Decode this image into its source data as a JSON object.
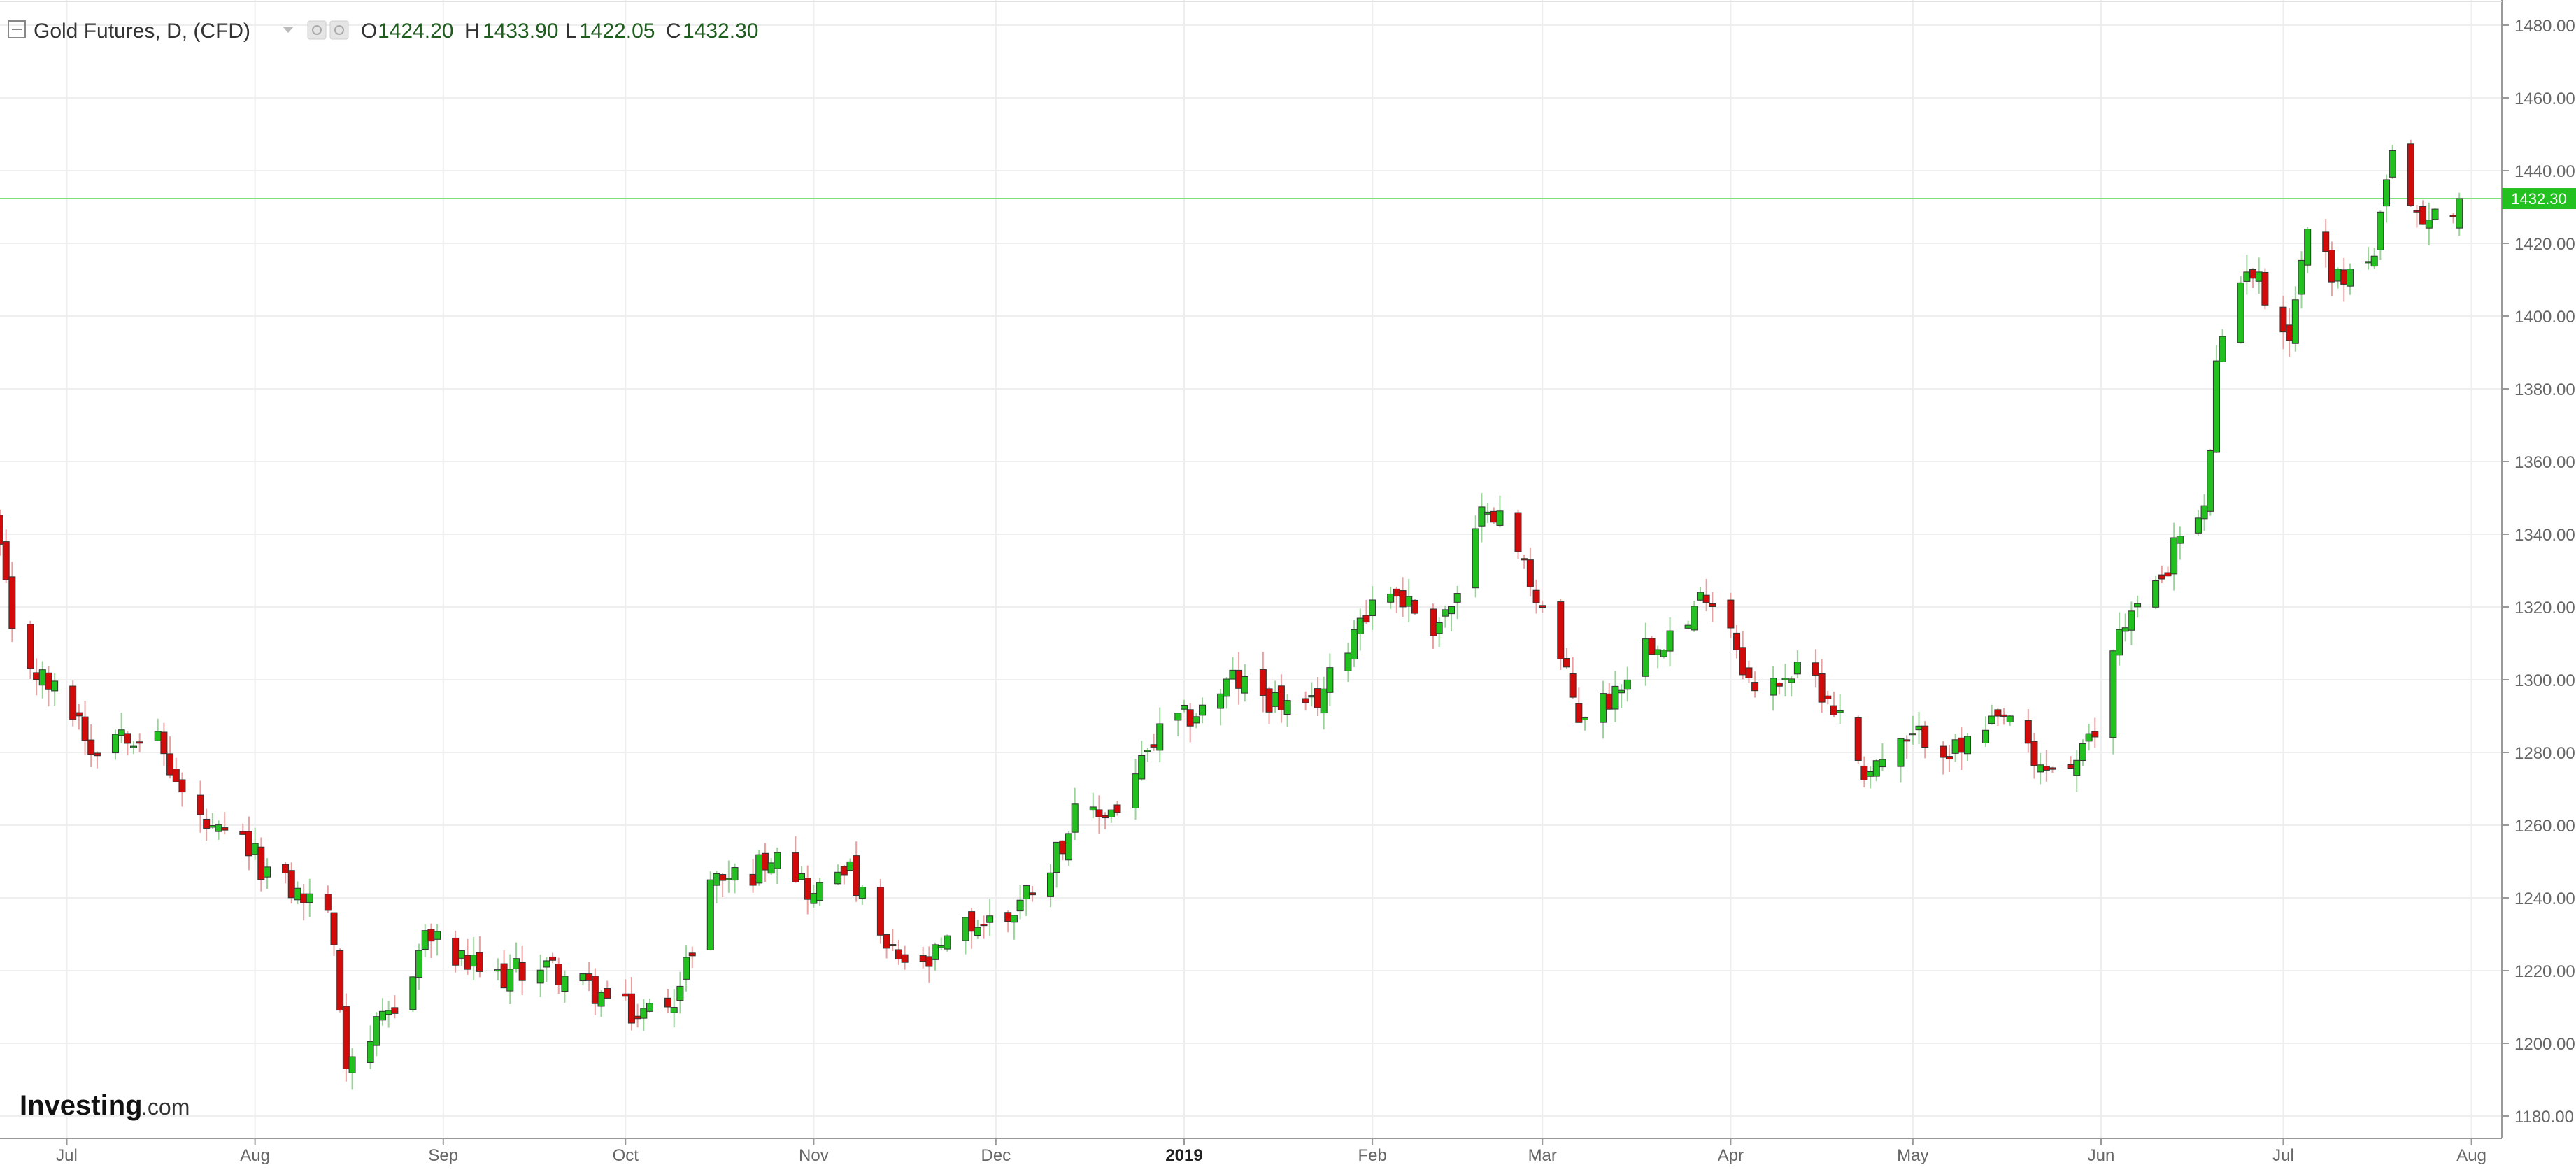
{
  "header": {
    "symbol": "Gold Futures, D, (CFD)",
    "ohlc": [
      {
        "label": "O",
        "value": "1424.20"
      },
      {
        "label": "H",
        "value": "1433.90"
      },
      {
        "label": "L",
        "value": "1422.05"
      },
      {
        "label": "C",
        "value": "1432.30"
      }
    ]
  },
  "logo": {
    "brand": "Investing",
    "suffix": ".com"
  },
  "colors": {
    "up": "#22c11f",
    "down": "#d20a0a",
    "current_line": "#7ee07a",
    "grid": "#eeeeee",
    "axis": "#999999",
    "label_text": "#666666"
  },
  "chart_data": {
    "type": "candlestick",
    "series_name": "Gold Futures, D, (CFD)",
    "current_price": 1432.3,
    "current_price_label": "1432.30",
    "y_axis": {
      "range": [
        1175,
        1482
      ],
      "ticks": [
        1180,
        1200,
        1220,
        1240,
        1260,
        1280,
        1300,
        1320,
        1340,
        1360,
        1380,
        1400,
        1420,
        1440,
        1460,
        1480
      ],
      "tick_labels": [
        "1180.00",
        "1200.00",
        "1220.00",
        "1240.00",
        "1260.00",
        "1280.00",
        "1300.00",
        "1320.00",
        "1340.00",
        "1360.00",
        "1380.00",
        "1400.00",
        "1420.00",
        "1440.00",
        "1460.00",
        "1480.00"
      ]
    },
    "x_axis": {
      "start": "2018-06-20",
      "end": "2019-08-06",
      "labels": [
        {
          "date": "2018-07-01",
          "text": "Jul",
          "bold": false
        },
        {
          "date": "2018-08-01",
          "text": "Aug",
          "bold": false
        },
        {
          "date": "2018-09-01",
          "text": "Sep",
          "bold": false
        },
        {
          "date": "2018-10-01",
          "text": "Oct",
          "bold": false
        },
        {
          "date": "2018-11-01",
          "text": "Nov",
          "bold": false
        },
        {
          "date": "2018-12-01",
          "text": "Dec",
          "bold": false
        },
        {
          "date": "2019-01-01",
          "text": "2019",
          "bold": true
        },
        {
          "date": "2019-02-01",
          "text": "Feb",
          "bold": false
        },
        {
          "date": "2019-03-01",
          "text": "Mar",
          "bold": false
        },
        {
          "date": "2019-04-01",
          "text": "Apr",
          "bold": false
        },
        {
          "date": "2019-05-01",
          "text": "May",
          "bold": false
        },
        {
          "date": "2019-06-01",
          "text": "Jun",
          "bold": false
        },
        {
          "date": "2019-07-01",
          "text": "Jul",
          "bold": false
        },
        {
          "date": "2019-08-01",
          "text": "Aug",
          "bold": false
        }
      ]
    },
    "anchors": [
      [
        "2018-06-20",
        1336
      ],
      [
        "2018-06-22",
        1311
      ],
      [
        "2018-06-27",
        1300
      ],
      [
        "2018-07-03",
        1290
      ],
      [
        "2018-07-05",
        1281
      ],
      [
        "2018-07-10",
        1287
      ],
      [
        "2018-07-16",
        1283
      ],
      [
        "2018-07-20",
        1268
      ],
      [
        "2018-07-25",
        1257
      ],
      [
        "2018-07-30",
        1255
      ],
      [
        "2018-08-03",
        1247
      ],
      [
        "2018-08-09",
        1240
      ],
      [
        "2018-08-13",
        1238
      ],
      [
        "2018-08-16",
        1196
      ],
      [
        "2018-08-24",
        1208
      ],
      [
        "2018-08-29",
        1230
      ],
      [
        "2018-09-04",
        1222
      ],
      [
        "2018-09-10",
        1218
      ],
      [
        "2018-09-17",
        1222
      ],
      [
        "2018-09-25",
        1215
      ],
      [
        "2018-10-03",
        1207
      ],
      [
        "2018-10-10",
        1215
      ],
      [
        "2018-10-15",
        1245
      ],
      [
        "2018-10-22",
        1247
      ],
      [
        "2018-10-26",
        1255
      ],
      [
        "2018-11-01",
        1240
      ],
      [
        "2018-11-06",
        1250
      ],
      [
        "2018-11-13",
        1225
      ],
      [
        "2018-11-19",
        1220
      ],
      [
        "2018-11-26",
        1232
      ],
      [
        "2018-12-03",
        1235
      ],
      [
        "2018-12-10",
        1250
      ],
      [
        "2018-12-14",
        1262
      ],
      [
        "2018-12-17",
        1262
      ],
      [
        "2018-12-21",
        1265
      ],
      [
        "2018-12-28",
        1285
      ],
      [
        "2019-01-04",
        1292
      ],
      [
        "2019-01-09",
        1300
      ],
      [
        "2019-01-15",
        1295
      ],
      [
        "2019-01-21",
        1290
      ],
      [
        "2019-01-25",
        1300
      ],
      [
        "2019-01-30",
        1318
      ],
      [
        "2019-02-04",
        1325
      ],
      [
        "2019-02-11",
        1315
      ],
      [
        "2019-02-15",
        1322
      ],
      [
        "2019-02-20",
        1350
      ],
      [
        "2019-02-25",
        1335
      ],
      [
        "2019-03-01",
        1320
      ],
      [
        "2019-03-07",
        1290
      ],
      [
        "2019-03-12",
        1295
      ],
      [
        "2019-03-18",
        1310
      ],
      [
        "2019-03-25",
        1315
      ],
      [
        "2019-03-28",
        1325
      ],
      [
        "2019-04-01",
        1315
      ],
      [
        "2019-04-05",
        1295
      ],
      [
        "2019-04-10",
        1302
      ],
      [
        "2019-04-15",
        1300
      ],
      [
        "2019-04-18",
        1293
      ],
      [
        "2019-04-23",
        1275
      ],
      [
        "2019-04-30",
        1282
      ],
      [
        "2019-05-03",
        1285
      ],
      [
        "2019-05-08",
        1280
      ],
      [
        "2019-05-13",
        1285
      ],
      [
        "2019-05-17",
        1290
      ],
      [
        "2019-05-21",
        1275
      ],
      [
        "2019-05-28",
        1277
      ],
      [
        "2019-05-31",
        1285
      ],
      [
        "2019-06-04",
        1315
      ],
      [
        "2019-06-10",
        1325
      ],
      [
        "2019-06-14",
        1340
      ],
      [
        "2019-06-18",
        1345
      ],
      [
        "2019-06-20",
        1385
      ],
      [
        "2019-06-25",
        1415
      ],
      [
        "2019-07-02",
        1395
      ],
      [
        "2019-07-05",
        1425
      ],
      [
        "2019-07-10",
        1410
      ],
      [
        "2019-07-16",
        1417
      ],
      [
        "2019-07-19",
        1443
      ],
      [
        "2019-07-24",
        1425
      ],
      [
        "2019-07-30",
        1432.3
      ]
    ]
  }
}
